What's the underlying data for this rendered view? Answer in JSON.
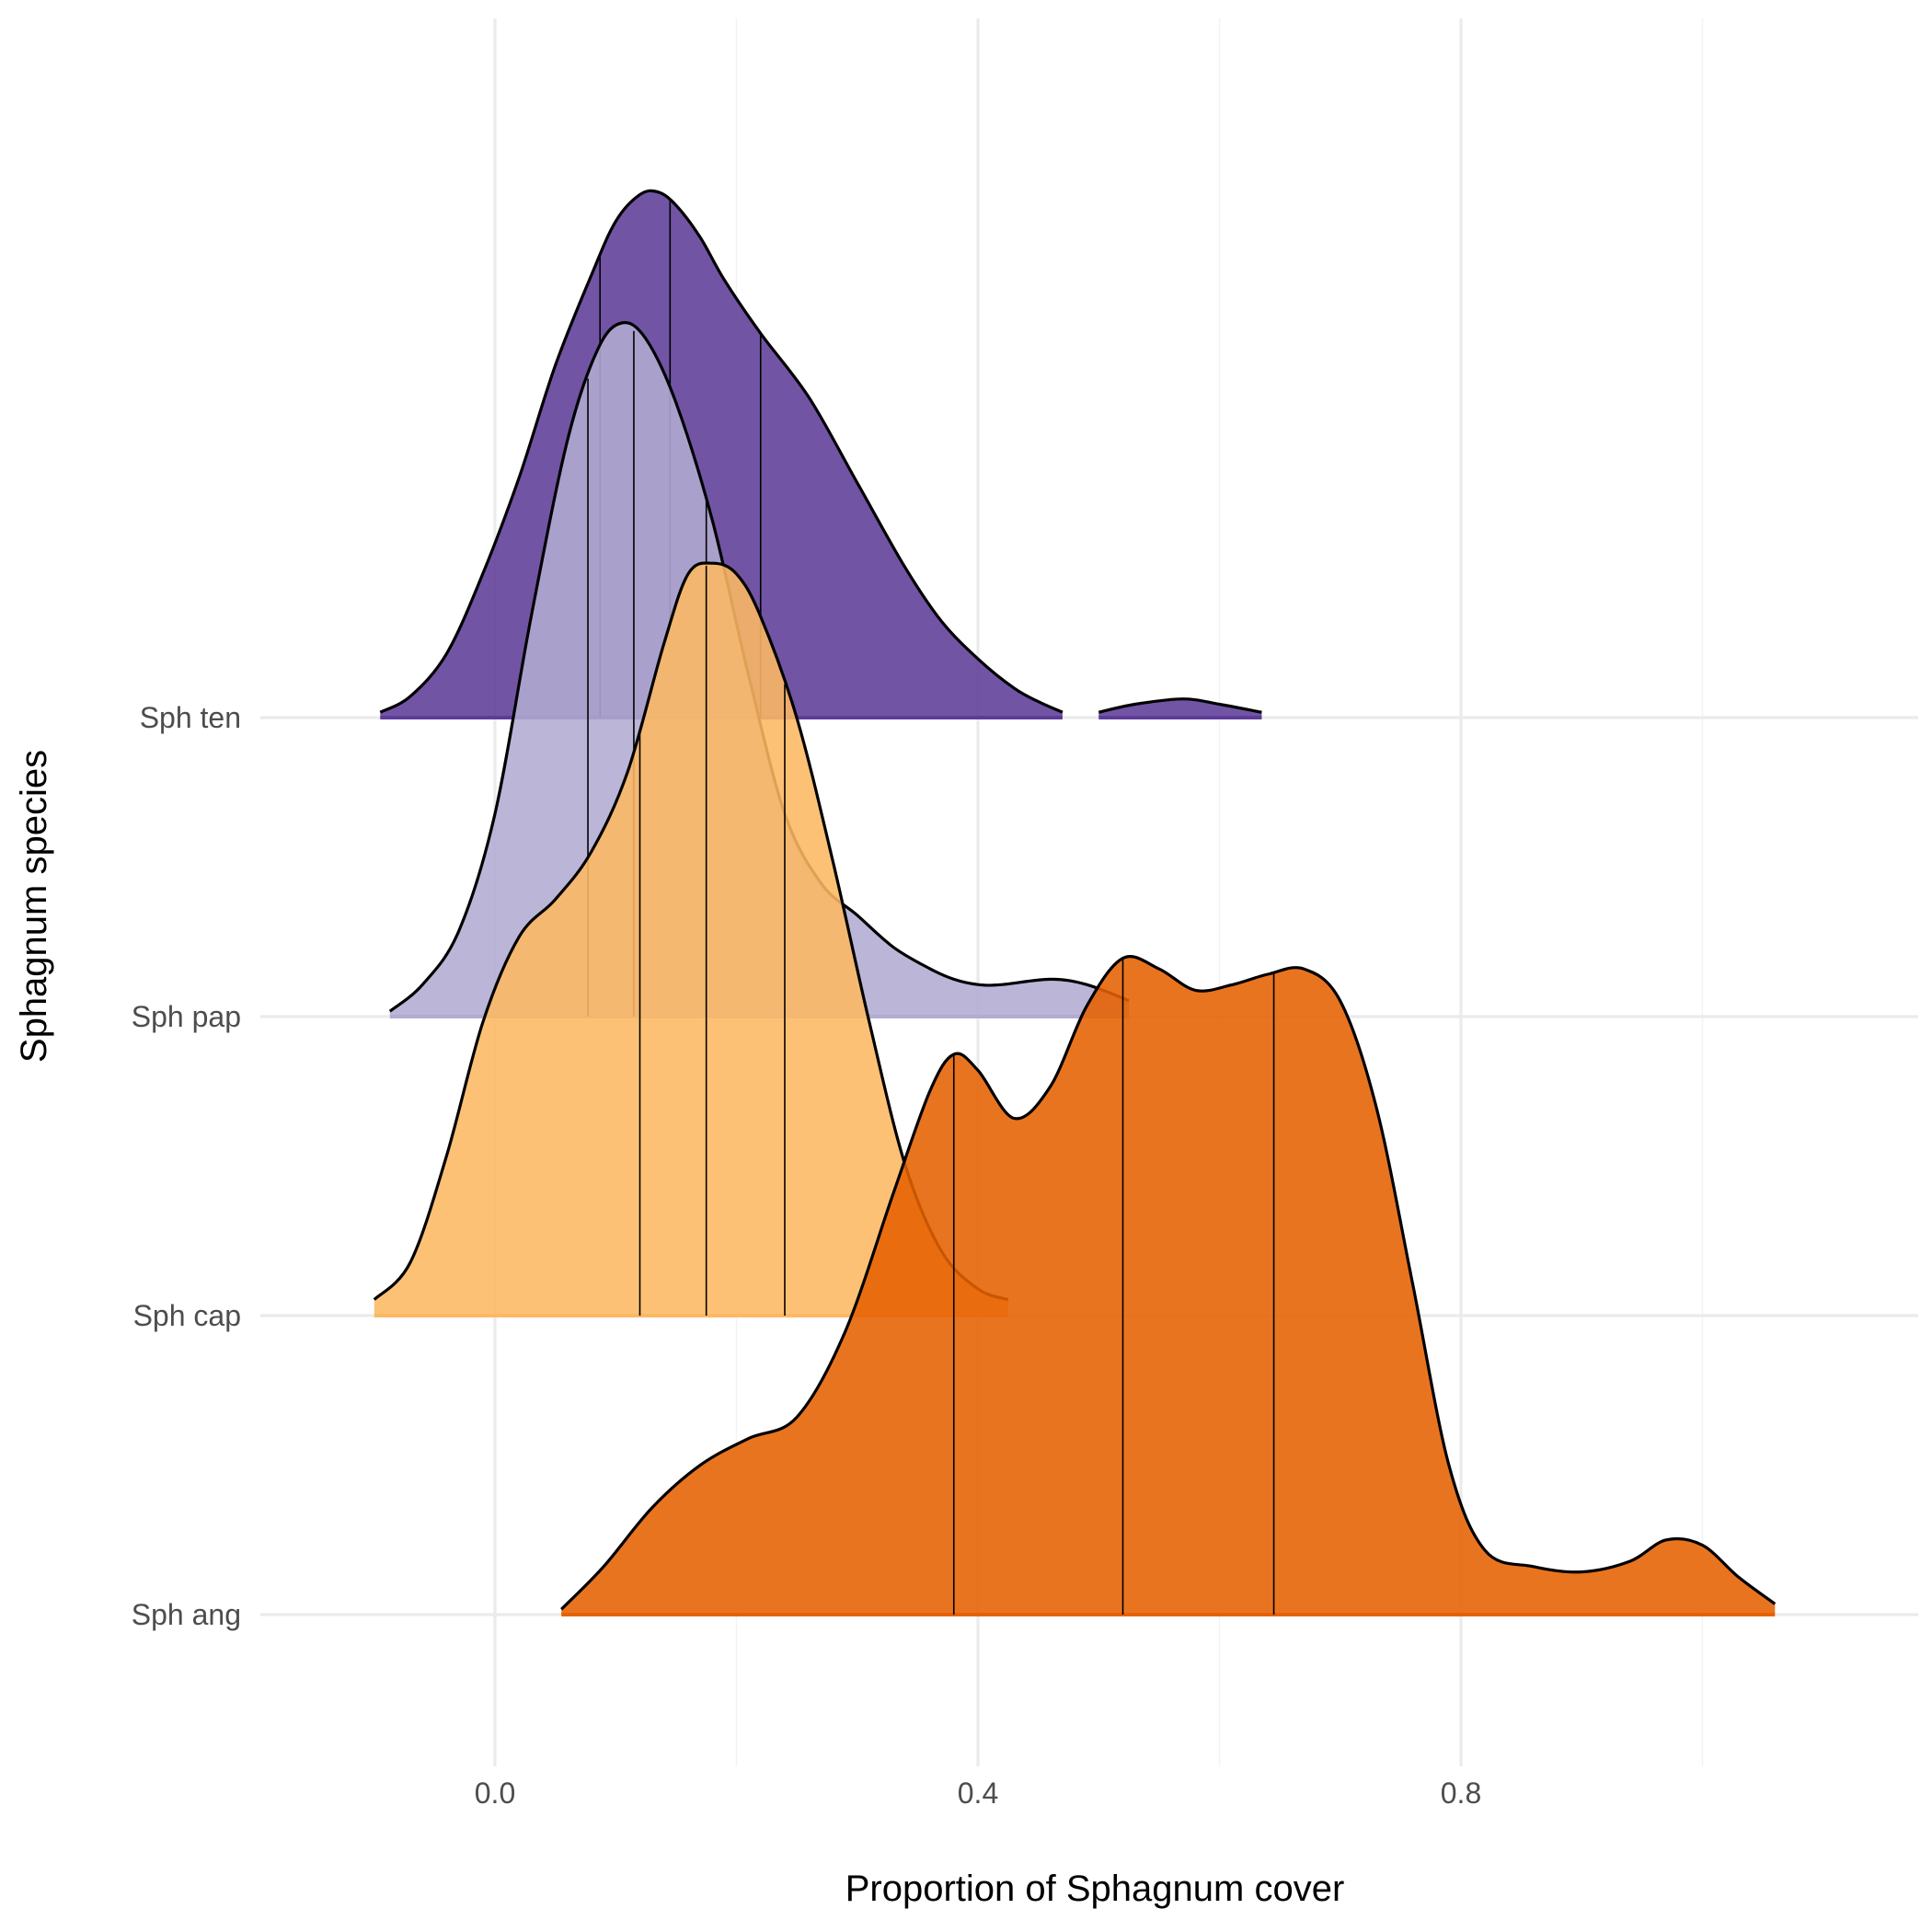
{
  "chart_data": {
    "type": "ridgeline",
    "xlabel": "Proportion of Sphagnum cover",
    "ylabel": "Sphagnum species",
    "xlim": [
      -0.19,
      1.17
    ],
    "x_ticks": [
      0.0,
      0.4,
      0.8
    ],
    "x_tick_labels": [
      "0.0",
      "0.4",
      "0.8"
    ],
    "x_minor_ticks": [
      0.2,
      0.6,
      1.0
    ],
    "y_categories": [
      "Sph ang",
      "Sph cap",
      "Sph pap",
      "Sph ten"
    ],
    "grid": true,
    "legend": "none",
    "series": [
      {
        "name": "Sph ten",
        "color": "#5e3c99",
        "opacity": 0.88,
        "density": [
          [
            -0.095,
            0.01
          ],
          [
            -0.07,
            0.04
          ],
          [
            -0.04,
            0.12
          ],
          [
            -0.01,
            0.27
          ],
          [
            0.02,
            0.45
          ],
          [
            0.05,
            0.66
          ],
          [
            0.08,
            0.83
          ],
          [
            0.1,
            0.93
          ],
          [
            0.12,
            0.98
          ],
          [
            0.135,
            0.985
          ],
          [
            0.15,
            0.96
          ],
          [
            0.17,
            0.9
          ],
          [
            0.19,
            0.82
          ],
          [
            0.22,
            0.72
          ],
          [
            0.26,
            0.6
          ],
          [
            0.3,
            0.44
          ],
          [
            0.34,
            0.28
          ],
          [
            0.37,
            0.18
          ],
          [
            0.4,
            0.11
          ],
          [
            0.43,
            0.055
          ],
          [
            0.45,
            0.03
          ],
          [
            0.47,
            0.01
          ]
        ],
        "density_extra": [
          [
            0.5,
            0.01
          ],
          [
            0.53,
            0.025
          ],
          [
            0.57,
            0.035
          ],
          [
            0.6,
            0.025
          ],
          [
            0.635,
            0.01
          ]
        ],
        "quantiles": [
          0.087,
          0.145,
          0.22
        ]
      },
      {
        "name": "Sph pap",
        "color": "#b2abd2",
        "opacity": 0.88,
        "density": [
          [
            -0.087,
            0.01
          ],
          [
            -0.06,
            0.06
          ],
          [
            -0.03,
            0.16
          ],
          [
            0.0,
            0.38
          ],
          [
            0.03,
            0.75
          ],
          [
            0.06,
            1.08
          ],
          [
            0.085,
            1.25
          ],
          [
            0.105,
            1.3
          ],
          [
            0.125,
            1.27
          ],
          [
            0.15,
            1.15
          ],
          [
            0.18,
            0.93
          ],
          [
            0.21,
            0.64
          ],
          [
            0.24,
            0.38
          ],
          [
            0.27,
            0.25
          ],
          [
            0.3,
            0.19
          ],
          [
            0.33,
            0.13
          ],
          [
            0.36,
            0.09
          ],
          [
            0.38,
            0.07
          ],
          [
            0.4,
            0.06
          ],
          [
            0.42,
            0.06
          ],
          [
            0.46,
            0.07
          ],
          [
            0.49,
            0.06
          ],
          [
            0.525,
            0.03
          ]
        ],
        "quantiles": [
          0.077,
          0.115,
          0.175
        ]
      },
      {
        "name": "Sph cap",
        "color": "#fdb863",
        "opacity": 0.88,
        "density": [
          [
            -0.1,
            0.03
          ],
          [
            -0.07,
            0.1
          ],
          [
            -0.04,
            0.3
          ],
          [
            -0.01,
            0.55
          ],
          [
            0.02,
            0.71
          ],
          [
            0.05,
            0.78
          ],
          [
            0.08,
            0.87
          ],
          [
            0.11,
            1.02
          ],
          [
            0.14,
            1.26
          ],
          [
            0.16,
            1.39
          ],
          [
            0.18,
            1.41
          ],
          [
            0.2,
            1.39
          ],
          [
            0.22,
            1.31
          ],
          [
            0.25,
            1.12
          ],
          [
            0.28,
            0.85
          ],
          [
            0.31,
            0.55
          ],
          [
            0.34,
            0.28
          ],
          [
            0.37,
            0.12
          ],
          [
            0.4,
            0.05
          ],
          [
            0.425,
            0.03
          ]
        ],
        "quantiles": [
          0.12,
          0.175,
          0.24
        ]
      },
      {
        "name": "Sph ang",
        "color": "#e66101",
        "opacity": 0.88,
        "density": [
          [
            0.055,
            0.01
          ],
          [
            0.09,
            0.09
          ],
          [
            0.13,
            0.2
          ],
          [
            0.17,
            0.28
          ],
          [
            0.21,
            0.33
          ],
          [
            0.25,
            0.37
          ],
          [
            0.29,
            0.53
          ],
          [
            0.33,
            0.79
          ],
          [
            0.36,
            0.98
          ],
          [
            0.38,
            1.05
          ],
          [
            0.4,
            1.02
          ],
          [
            0.43,
            0.93
          ],
          [
            0.46,
            0.99
          ],
          [
            0.49,
            1.14
          ],
          [
            0.52,
            1.23
          ],
          [
            0.55,
            1.21
          ],
          [
            0.58,
            1.17
          ],
          [
            0.61,
            1.18
          ],
          [
            0.64,
            1.2
          ],
          [
            0.67,
            1.21
          ],
          [
            0.7,
            1.15
          ],
          [
            0.73,
            0.95
          ],
          [
            0.76,
            0.62
          ],
          [
            0.79,
            0.28
          ],
          [
            0.82,
            0.12
          ],
          [
            0.86,
            0.09
          ],
          [
            0.9,
            0.08
          ],
          [
            0.94,
            0.1
          ],
          [
            0.97,
            0.14
          ],
          [
            1.0,
            0.13
          ],
          [
            1.03,
            0.07
          ],
          [
            1.06,
            0.02
          ]
        ],
        "quantiles": [
          0.38,
          0.52,
          0.645
        ]
      }
    ]
  }
}
